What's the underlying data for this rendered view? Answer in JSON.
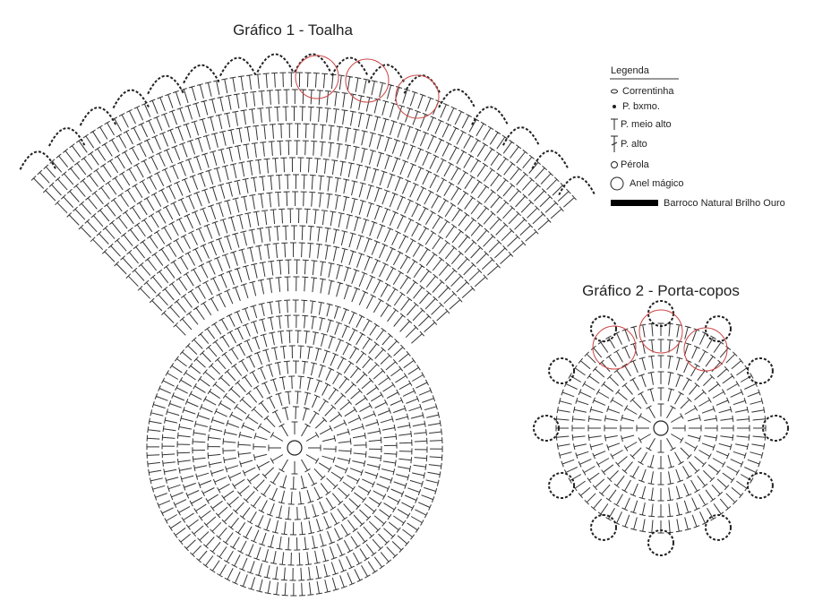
{
  "charts": [
    {
      "title": "Gráfico 1 - Toalha"
    },
    {
      "title": "Gráfico 2 - Porta-copos"
    }
  ],
  "legend": {
    "title": "Legenda",
    "items": [
      "Correntinha",
      "P. bxmo.",
      "P. meio alto",
      "P. alto",
      "Pérola",
      "Anel mágico",
      "Barroco Natural Brilho Ouro"
    ]
  }
}
